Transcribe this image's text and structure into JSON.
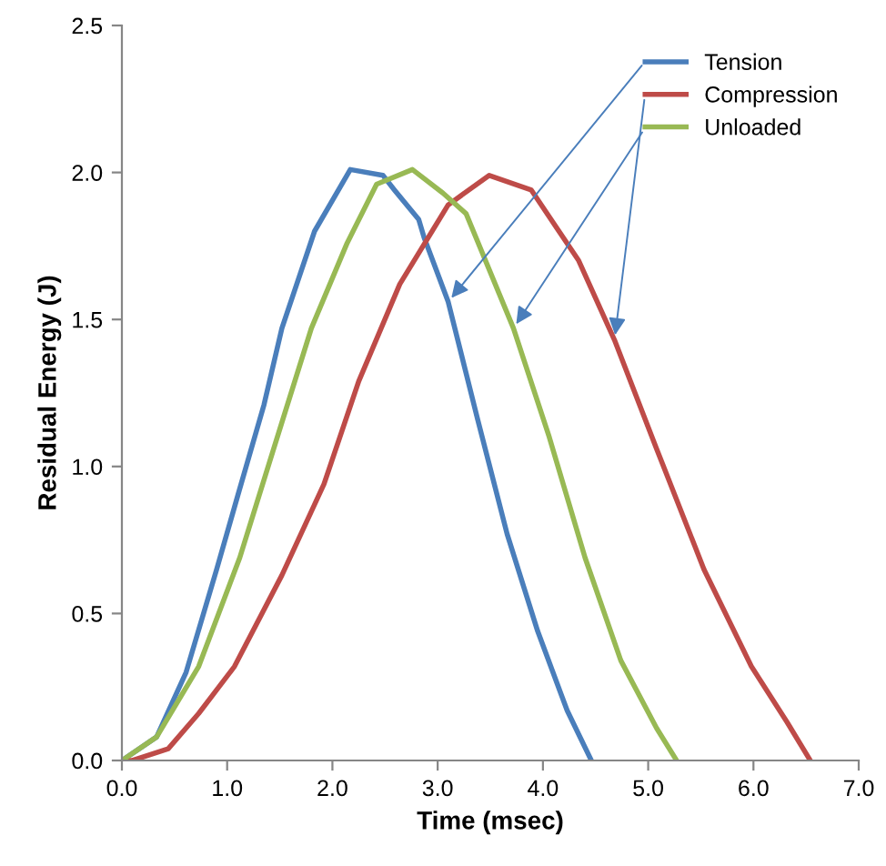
{
  "chart_data": {
    "type": "line",
    "xlabel": "Time (msec)",
    "ylabel": "Residual Energy (J)",
    "xlim": [
      0,
      7
    ],
    "ylim": [
      0,
      2.5
    ],
    "xticks": [
      {
        "value": 0,
        "label": "0.0"
      },
      {
        "value": 1,
        "label": "1.0"
      },
      {
        "value": 2,
        "label": "2.0"
      },
      {
        "value": 3,
        "label": "3.0"
      },
      {
        "value": 4,
        "label": "4.0"
      },
      {
        "value": 5,
        "label": "5.0"
      },
      {
        "value": 6,
        "label": "6.0"
      },
      {
        "value": 7,
        "label": "7.0"
      }
    ],
    "yticks": [
      {
        "value": 0,
        "label": "0.0"
      },
      {
        "value": 0.5,
        "label": "0.5"
      },
      {
        "value": 1,
        "label": "1.0"
      },
      {
        "value": 1.5,
        "label": "1.5"
      },
      {
        "value": 2,
        "label": "2.0"
      },
      {
        "value": 2.5,
        "label": "2.5"
      }
    ],
    "grid": false,
    "legend": "top right",
    "marker": "none",
    "line_style": "solid",
    "series": [
      {
        "name": "Tension",
        "color": "#4a7ebb",
        "x": [
          0,
          0.33,
          0.61,
          0.9,
          1.1,
          1.35,
          1.52,
          1.83,
          2.17,
          2.48,
          2.59,
          2.82,
          2.87,
          3.1,
          3.38,
          3.66,
          3.95,
          4.23,
          4.46
        ],
        "values": [
          0,
          0.08,
          0.3,
          0.65,
          0.9,
          1.21,
          1.47,
          1.8,
          2.01,
          1.99,
          1.94,
          1.84,
          1.78,
          1.56,
          1.16,
          0.77,
          0.44,
          0.17,
          0
        ]
      },
      {
        "name": "Compression",
        "color": "#be4b48",
        "x": [
          0,
          0.1,
          0.44,
          0.73,
          1.07,
          1.52,
          1.92,
          2.25,
          2.64,
          3.1,
          3.49,
          3.89,
          4.34,
          4.68,
          5.08,
          5.53,
          5.98,
          6.32,
          6.54
        ],
        "values": [
          0,
          0,
          0.04,
          0.16,
          0.32,
          0.63,
          0.94,
          1.29,
          1.62,
          1.89,
          1.99,
          1.94,
          1.7,
          1.43,
          1.06,
          0.65,
          0.32,
          0.13,
          0
        ]
      },
      {
        "name": "Unloaded",
        "color": "#98b954",
        "x": [
          0,
          0.33,
          0.73,
          1.12,
          1.52,
          1.8,
          2.14,
          2.42,
          2.76,
          3.05,
          3.27,
          3.72,
          4.06,
          4.4,
          4.74,
          5.08,
          5.27
        ],
        "values": [
          0,
          0.08,
          0.32,
          0.69,
          1.15,
          1.47,
          1.76,
          1.96,
          2.01,
          1.93,
          1.86,
          1.47,
          1.1,
          0.69,
          0.34,
          0.11,
          0
        ]
      }
    ]
  }
}
